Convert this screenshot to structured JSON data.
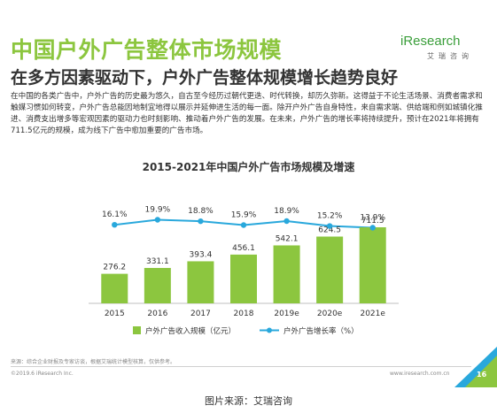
{
  "header": {
    "title": "中国户外广告整体市场规模",
    "subtitle": "在多方因素驱动下，户外广告整体规模增长趋势良好",
    "logo_text": "iResearch",
    "logo_subtext": "艾瑞咨询"
  },
  "body_text": "在中国的各类广告中，户外广告的历史最为悠久，自古至今经历过朝代更迭、时代转换，却历久弥新。这得益于不论生活场景、消费者需求和触媒习惯如何转变，户外广告总能因地制宜地得以展示并延伸进生活的每一面。除开户外广告自身特性，来自需求端、供给端和例如城镇化推进、消费支出增多等宏观因素的驱动力也时刻影响、推动着户外广告的发展。在未来，户外广告的增长率将持续提升，预计在2021年将拥有711.5亿元的规模，成为线下广告中愈加重要的广告市场。",
  "chart_data": {
    "type": "bar",
    "title": "2015-2021年中国户外广告市场规模及增速",
    "categories": [
      "2015",
      "2016",
      "2017",
      "2018",
      "2019e",
      "2020e",
      "2021e"
    ],
    "series": [
      {
        "name": "户外广告收入规模（亿元）",
        "type": "bar",
        "values": [
          276.2,
          331.1,
          393.4,
          456.1,
          542.1,
          624.5,
          711.5
        ],
        "labels": [
          "276.2",
          "331.1",
          "393.4",
          "456.1",
          "542.1",
          "624.5",
          "711.5"
        ],
        "color": "#8cc63f"
      },
      {
        "name": "户外广告增长率（%）",
        "type": "line",
        "values": [
          16.1,
          19.9,
          18.8,
          15.9,
          18.9,
          15.2,
          13.9
        ],
        "labels": [
          "16.1%",
          "19.9%",
          "18.8%",
          "15.9%",
          "18.9%",
          "15.2%",
          "13.9%"
        ],
        "color": "#29a8dc"
      }
    ],
    "grid": false,
    "legend_position": "bottom"
  },
  "footer": {
    "source": "来源：综合企业财报及专家访谈，根据艾瑞统计模型核算，仅供参考。",
    "copyright": "©2019.6 iResearch Inc.",
    "website": "www.iresearch.com.cn",
    "page_number": "16"
  },
  "caption": "图片来源：艾瑞咨询"
}
